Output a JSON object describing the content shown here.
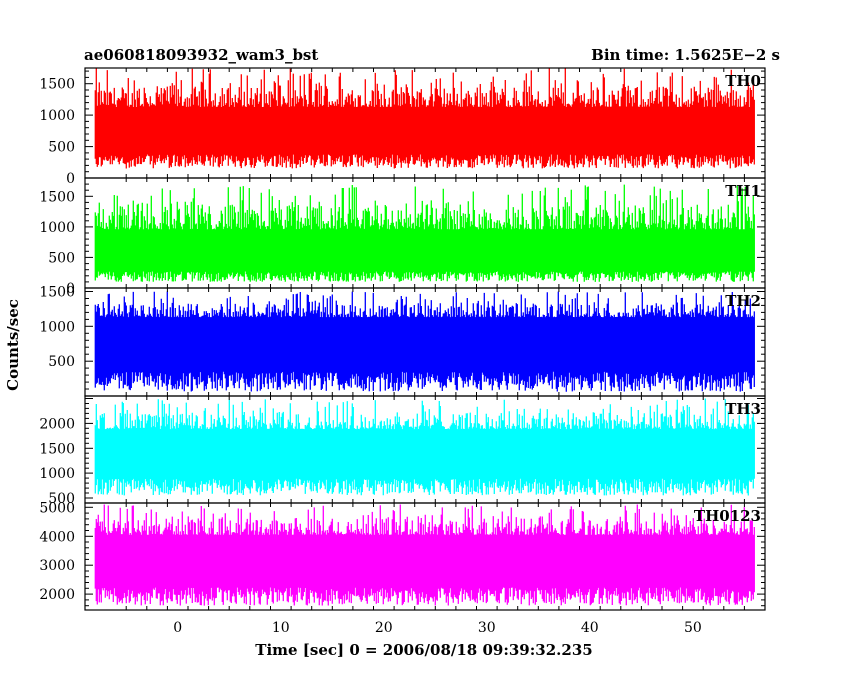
{
  "chart_data": {
    "type": "line",
    "title_left": "ae060818093932_wam3_bst",
    "title_right": "Bin time: 1.5625E−2 s",
    "xlabel": "Time [sec] 0 = 2006/08/18 09:39:32.235",
    "ylabel": "Counts/sec",
    "xlim": [
      -9,
      57
    ],
    "x_data_range": [
      -8,
      56
    ],
    "x_ticks": [
      0,
      10,
      20,
      30,
      40,
      50
    ],
    "x_tick_labels": [
      "0",
      "10",
      "20",
      "30",
      "40",
      "50"
    ],
    "grid": false,
    "panels": [
      {
        "name": "TH0",
        "color": "#ff0000",
        "ylim": [
          0,
          1750
        ],
        "y_ticks": [
          0,
          500,
          1000,
          1500
        ],
        "y_tick_labels": [
          "0",
          "500",
          "1000",
          "1500"
        ],
        "mean": 650,
        "min_approx": 150,
        "max_approx": 1750
      },
      {
        "name": "TH1",
        "color": "#00ff00",
        "ylim": [
          0,
          1800
        ],
        "y_ticks": [
          0,
          500,
          1000,
          1500
        ],
        "y_tick_labels": [
          "0",
          "500",
          "1000",
          "1500"
        ],
        "mean": 480,
        "min_approx": 100,
        "max_approx": 1700
      },
      {
        "name": "TH2",
        "color": "#0000ff",
        "ylim": [
          0,
          1550
        ],
        "y_ticks": [
          500,
          1000,
          1500
        ],
        "y_tick_labels": [
          "500",
          "1000",
          "1500"
        ],
        "mean": 700,
        "min_approx": 60,
        "max_approx": 1500
      },
      {
        "name": "TH3",
        "color": "#00ffff",
        "ylim": [
          400,
          2550
        ],
        "y_ticks": [
          500,
          1000,
          1500,
          2000
        ],
        "y_tick_labels": [
          "500",
          "1000",
          "1500",
          "2000"
        ],
        "mean": 1300,
        "min_approx": 550,
        "max_approx": 2500
      },
      {
        "name": "TH0123",
        "color": "#ff00ff",
        "ylim": [
          1450,
          5150
        ],
        "y_ticks": [
          2000,
          3000,
          4000,
          5000
        ],
        "y_tick_labels": [
          "2000",
          "3000",
          "4000",
          "5000"
        ],
        "mean": 3000,
        "min_approx": 1600,
        "max_approx": 5100
      }
    ]
  }
}
